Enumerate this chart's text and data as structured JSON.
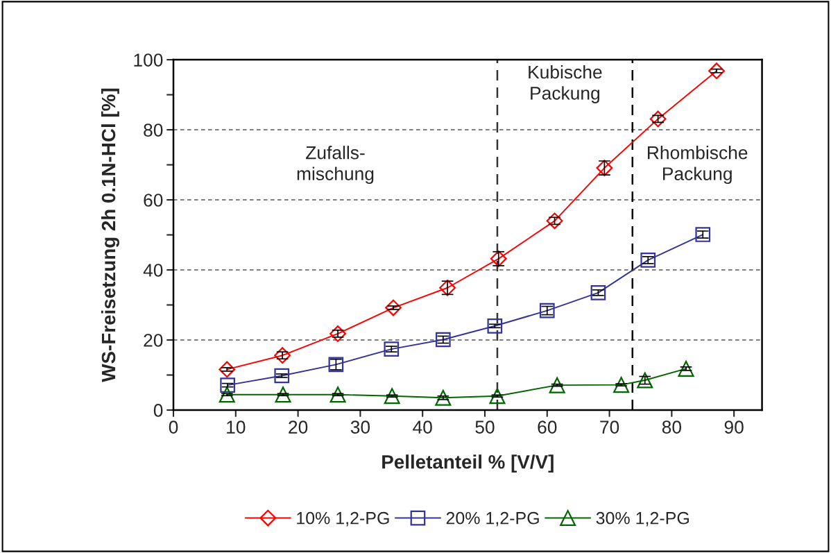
{
  "chart_data": {
    "type": "line",
    "xlabel": "Pelletanteil % [V/V]",
    "ylabel": "WS-Freisetzung 2h 0.1N-HCl [%]",
    "xlim": [
      0,
      94.5
    ],
    "xticks": [
      0,
      10,
      20,
      30,
      40,
      50,
      60,
      70,
      80,
      90
    ],
    "ylim": [
      0,
      100
    ],
    "yticks": [
      0,
      {
        "value": 10,
        "label": null
      },
      20,
      {
        "value": 30,
        "label": null
      },
      40,
      {
        "value": 50,
        "label": null
      },
      60,
      {
        "value": 70,
        "label": null
      },
      80,
      {
        "value": 90,
        "label": null
      },
      100
    ],
    "grid": "y",
    "legend": "bottom",
    "line_style": "solid",
    "series": [
      {
        "name": "10% 1,2-PG",
        "color": "#ff0000",
        "marker": "diamond",
        "x": [
          8.6,
          17.5,
          26.4,
          35.3,
          44.0,
          52.2,
          61.2,
          69.2,
          77.8,
          87.2
        ],
        "values": [
          11.6,
          15.6,
          21.8,
          29.2,
          34.9,
          43.2,
          54.0,
          69.1,
          83.1,
          96.8
        ],
        "errors": [
          0.5,
          1,
          1,
          0.5,
          1.9,
          2,
          1,
          2,
          1,
          0.5
        ]
      },
      {
        "name": "20% 1,2-PG",
        "color": "#333399",
        "marker": "square",
        "x": [
          8.7,
          17.4,
          26.1,
          35.0,
          43.3,
          51.6,
          60.0,
          68.2,
          76.2,
          85.0
        ],
        "values": [
          7.1,
          9.8,
          13.0,
          17.4,
          20.1,
          24.0,
          28.4,
          33.5,
          42.8,
          50.1
        ],
        "errors": [
          0.5,
          0.5,
          1.5,
          0.8,
          1,
          0.5,
          1.2,
          0.8,
          1,
          1
        ]
      },
      {
        "name": "30% 1,2-PG",
        "color": "#006600",
        "marker": "triangle",
        "x": [
          8.6,
          17.6,
          26.4,
          35.1,
          43.3,
          52.0,
          61.6,
          71.9,
          75.7,
          82.3
        ],
        "values": [
          4.4,
          4.4,
          4.4,
          4.0,
          3.5,
          4.0,
          7.1,
          7.2,
          8.5,
          11.8
        ],
        "errors": [
          0.3,
          0.3,
          0.3,
          0.3,
          0.5,
          0.3,
          0.3,
          0.3,
          1.1,
          0.5
        ]
      }
    ],
    "ref_lines": [
      {
        "axis": "x",
        "value": 52.0,
        "color": "#333333",
        "line_style": "dashed"
      },
      {
        "axis": "x",
        "value": 73.7,
        "color": "#000000",
        "line_style": "dashed"
      }
    ],
    "annotations": [
      "Zufalls-\nmischung",
      "Kubische\nPackung",
      "Rhombische\nPackung"
    ]
  }
}
